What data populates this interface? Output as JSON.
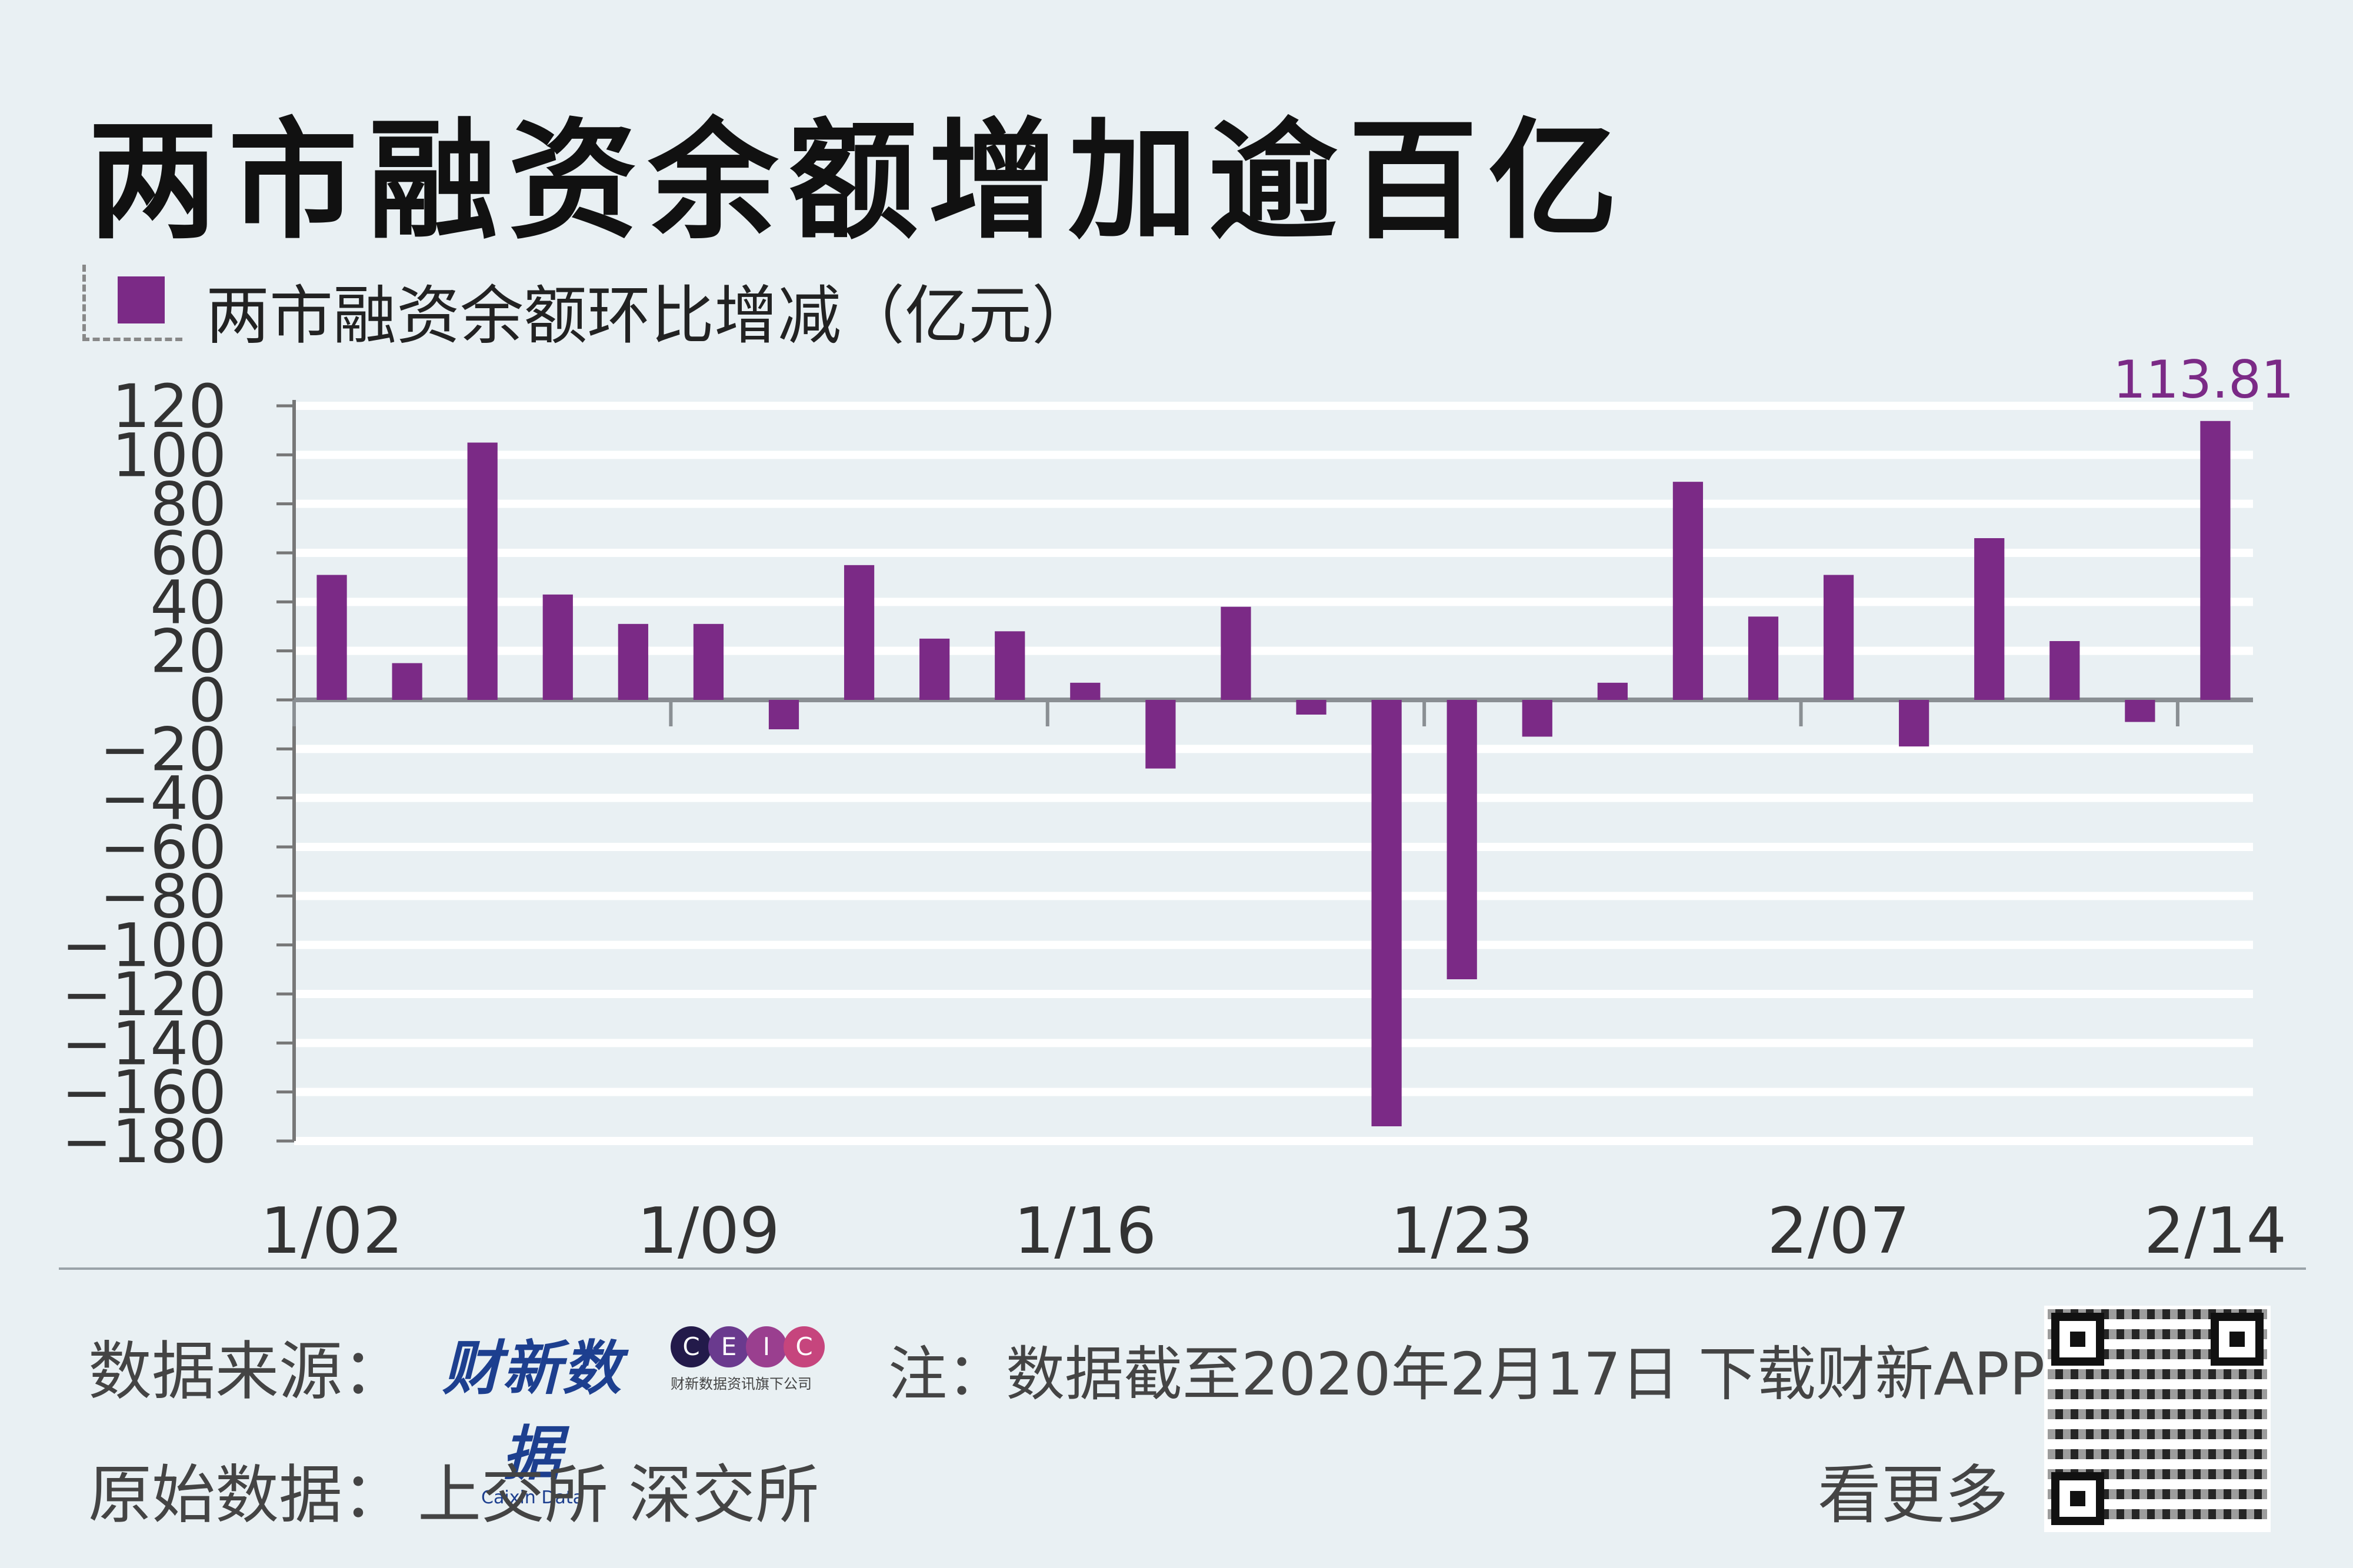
{
  "title": "两市融资余额增加逾百亿",
  "legend": {
    "label": "两市融资余额环比增减（亿元）",
    "color": "#7b2a86"
  },
  "chart_data": {
    "type": "bar",
    "title": "两市融资余额增加逾百亿",
    "series": [
      {
        "name": "两市融资余额环比增减（亿元）",
        "color": "#7b2a86",
        "values": [
          51,
          15,
          105,
          43,
          31,
          31,
          -12,
          55,
          25,
          28,
          7,
          -28,
          38,
          -6,
          -174,
          -114,
          -15,
          7,
          89,
          34,
          51,
          -19,
          66,
          24,
          -9,
          113.81
        ]
      }
    ],
    "x_tick_labels": [
      "1/02",
      "1/09",
      "1/16",
      "1/23",
      "2/07",
      "2/14"
    ],
    "y_ticks": [
      120,
      100,
      80,
      60,
      40,
      20,
      0,
      -20,
      -40,
      -60,
      -80,
      -100,
      -120,
      -140,
      -160,
      -180
    ],
    "y_tick_labels": [
      "120",
      "100",
      "80",
      "60",
      "40",
      "20",
      "0",
      "−20",
      "−40",
      "−60",
      "−80",
      "−100",
      "−120",
      "−140",
      "−160",
      "−180"
    ],
    "ylim": [
      -180,
      120
    ],
    "annotations": [
      {
        "bar_index": 25,
        "text": "113.81"
      }
    ],
    "grid": true
  },
  "footer": {
    "source_label": "数据来源：",
    "caixin_logo_cn": "财新数据",
    "caixin_logo_en": "Caixin Data",
    "ceic_letters": [
      "C",
      "E",
      "I",
      "C"
    ],
    "ceic_sub": "财新数据资讯旗下公司",
    "note": "注：数据截至2020年2月17日 下载财新APP",
    "orig_label": "原始数据：",
    "orig_sources": "上交所 深交所",
    "more": "看更多"
  }
}
